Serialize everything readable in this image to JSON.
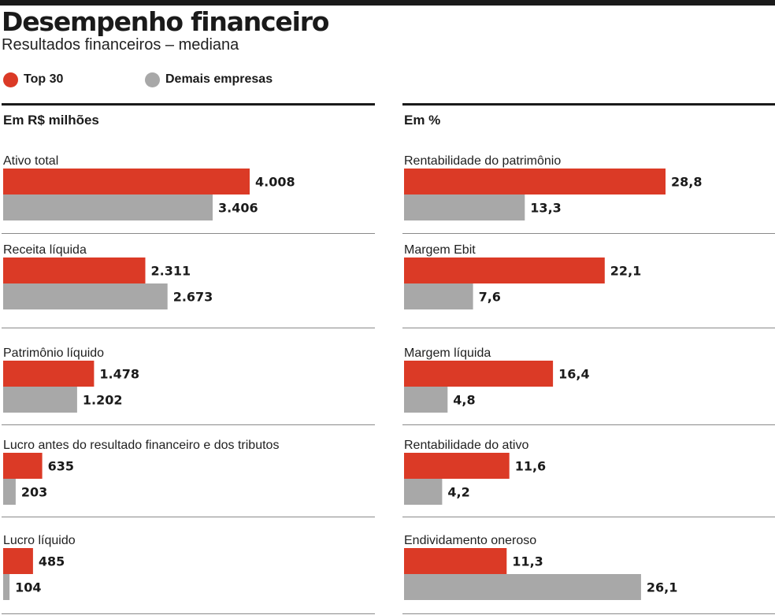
{
  "header": {
    "title": "Desempenho financeiro",
    "subtitle": "Resultados financeiros – mediana"
  },
  "legend": [
    {
      "label": "Top 30",
      "color": "#db3a26"
    },
    {
      "label": "Demais empresas",
      "color": "#a8a8a8"
    }
  ],
  "chart_data": [
    {
      "type": "bar",
      "orientation": "horizontal",
      "title": "Em R$ milhões",
      "categories": [
        "Ativo total",
        "Receita líquida",
        "Patrimônio líquido",
        "Lucro antes do resultado financeiro e dos tributos",
        "Lucro líquido"
      ],
      "series": [
        {
          "name": "Top 30",
          "color": "#db3a26",
          "values": [
            4008,
            2311,
            1478,
            635,
            485
          ],
          "labels": [
            "4.008",
            "2.311",
            "1.478",
            "635",
            "485"
          ]
        },
        {
          "name": "Demais empresas",
          "color": "#a8a8a8",
          "values": [
            3406,
            2673,
            1202,
            203,
            104
          ],
          "labels": [
            "3.406",
            "2.673",
            "1.202",
            "203",
            "104"
          ]
        }
      ],
      "grid": false,
      "legend": "top-left"
    },
    {
      "type": "bar",
      "orientation": "horizontal",
      "title": "Em %",
      "categories": [
        "Rentabilidade do patrimônio",
        "Margem Ebit",
        "Margem líquida",
        "Rentabilidade do ativo",
        "Endividamento oneroso"
      ],
      "series": [
        {
          "name": "Top 30",
          "color": "#db3a26",
          "values": [
            28.8,
            22.1,
            16.4,
            11.6,
            11.3
          ],
          "labels": [
            "28,8",
            "22,1",
            "16,4",
            "11,6",
            "11,3"
          ]
        },
        {
          "name": "Demais empresas",
          "color": "#a8a8a8",
          "values": [
            13.3,
            7.6,
            4.8,
            4.2,
            26.1
          ],
          "labels": [
            "13,3",
            "7,6",
            "4,8",
            "4,2",
            "26,1"
          ]
        }
      ],
      "grid": false,
      "legend": "top-left"
    }
  ]
}
